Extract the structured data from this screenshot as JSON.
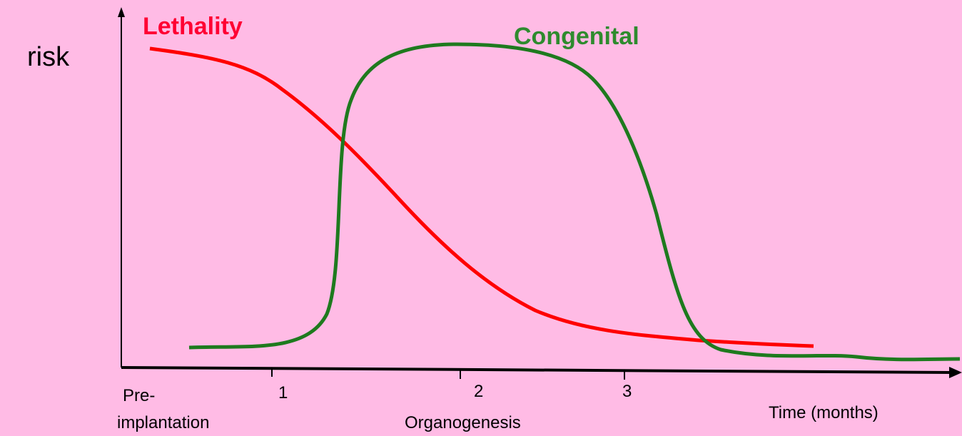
{
  "labels": {
    "y_axis": "risk",
    "lethality": "Lethality",
    "congenital": "Congenital",
    "pre_line1": "Pre-",
    "pre_line2": "implantation",
    "tick1": "1",
    "tick2": "2",
    "tick3": "3",
    "organogenesis": "Organogenesis",
    "x_axis": "Time (months)"
  }
}
